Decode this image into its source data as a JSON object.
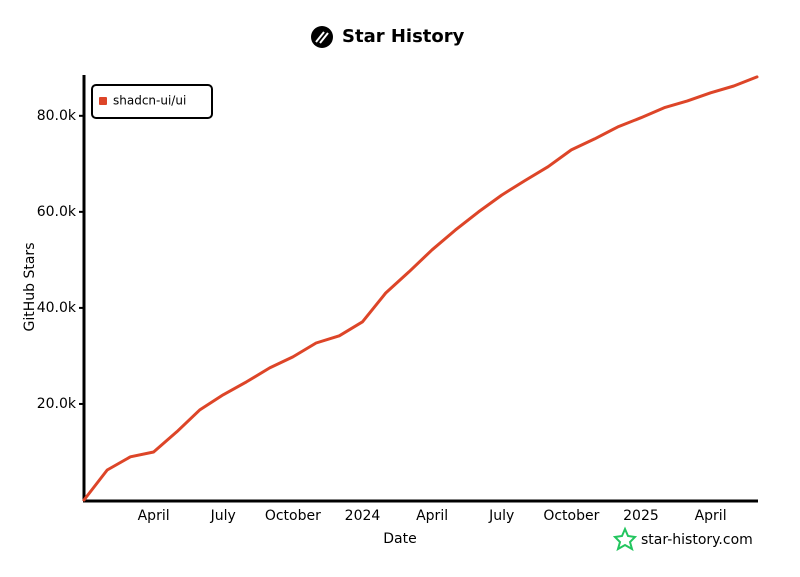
{
  "chart_data": {
    "type": "line",
    "title": "Star History",
    "x_label": "Date",
    "y_label": "GitHub Stars",
    "watermark": "star-history.com",
    "legend": "top-left",
    "categories": [
      null,
      null,
      null,
      "April",
      null,
      null,
      "July",
      null,
      null,
      "October",
      null,
      null,
      "2024",
      null,
      null,
      "April",
      null,
      null,
      "July",
      null,
      null,
      "October",
      null,
      null,
      "2025",
      null,
      null,
      "April",
      null,
      null
    ],
    "series": [
      {
        "name": "shadcn-ui/ui",
        "color": "#dd4528",
        "values": [
          0,
          6250,
          9000,
          10000,
          14200,
          18800,
          21900,
          24600,
          27500,
          29800,
          32700,
          34200,
          37100,
          43100,
          47500,
          52100,
          56200,
          60000,
          63500,
          66500,
          69400,
          72900,
          75200,
          77700,
          79600,
          81700,
          83100,
          84800,
          86200,
          88100
        ]
      }
    ],
    "ylim": [
      0,
      88500
    ],
    "yticks": [
      {
        "value": 20000,
        "label": "20.0k"
      },
      {
        "value": 40000,
        "label": "40.0k"
      },
      {
        "value": 60000,
        "label": "60.0k"
      },
      {
        "value": 80000,
        "label": "80.0k"
      }
    ]
  }
}
